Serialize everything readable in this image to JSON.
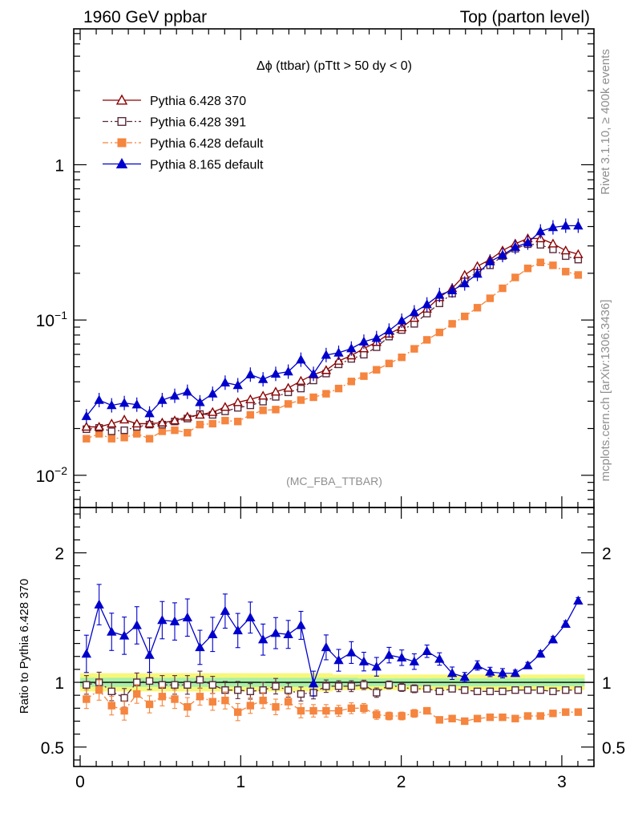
{
  "header": {
    "left": "1960 GeV ppbar",
    "right": "Top (parton level)"
  },
  "side_labels": {
    "rivet": "Rivet 3.1.10, ≥ 400k events",
    "mcplots": "mcplots.cern.ch [arXiv:1306.3436]"
  },
  "chart_data": [
    {
      "type": "line",
      "panel": "main",
      "title": "Δϕ (ttbar) (pTtt > 50 dy < 0)",
      "watermark": "(MC_FBA_TTBAR)",
      "xlabel": "",
      "ylabel": "",
      "yscale": "log",
      "xlim": [
        -0.04,
        3.2
      ],
      "ylim": [
        0.0062,
        7.5
      ],
      "grid": false,
      "legend_position": "top-left",
      "x_ticks": [
        {
          "value": 0,
          "label": "0"
        },
        {
          "value": 1,
          "label": "1"
        },
        {
          "value": 2,
          "label": "2"
        },
        {
          "value": 3,
          "label": "3"
        }
      ],
      "y_ticks": [
        {
          "value": 0.01,
          "base": "10",
          "exp": "−2"
        },
        {
          "value": 0.1,
          "base": "10",
          "exp": "−1"
        },
        {
          "value": 1,
          "base": "1",
          "exp": ""
        }
      ],
      "x": [
        0.039,
        0.118,
        0.196,
        0.275,
        0.353,
        0.432,
        0.511,
        0.589,
        0.668,
        0.746,
        0.825,
        0.903,
        0.982,
        1.06,
        1.139,
        1.218,
        1.296,
        1.375,
        1.453,
        1.532,
        1.61,
        1.689,
        1.767,
        1.846,
        1.924,
        2.003,
        2.081,
        2.16,
        2.238,
        2.317,
        2.395,
        2.474,
        2.553,
        2.631,
        2.71,
        2.788,
        2.867,
        2.945,
        3.024,
        3.102
      ],
      "series": [
        {
          "name": "Pythia 6.428 370",
          "color": "#8b0000",
          "marker": "open-triangle",
          "dash": "solid",
          "values": [
            0.0205,
            0.0205,
            0.0215,
            0.0228,
            0.0215,
            0.0215,
            0.0218,
            0.0225,
            0.0238,
            0.0245,
            0.0255,
            0.0275,
            0.0295,
            0.0308,
            0.0325,
            0.0345,
            0.0365,
            0.0405,
            0.0445,
            0.0475,
            0.0545,
            0.059,
            0.0655,
            0.072,
            0.0815,
            0.0895,
            0.103,
            0.118,
            0.14,
            0.16,
            0.195,
            0.222,
            0.245,
            0.28,
            0.31,
            0.335,
            0.335,
            0.31,
            0.28,
            0.265
          ]
        },
        {
          "name": "Pythia 6.428 391",
          "color": "#5a2a3a",
          "marker": "open-square",
          "dash": "dashdot",
          "values": [
            0.0198,
            0.0202,
            0.0192,
            0.0195,
            0.0205,
            0.0212,
            0.0212,
            0.0222,
            0.0232,
            0.0248,
            0.0245,
            0.0258,
            0.0272,
            0.0282,
            0.0298,
            0.032,
            0.0342,
            0.0362,
            0.0408,
            0.0452,
            0.0518,
            0.0562,
            0.0598,
            0.0668,
            0.0782,
            0.0862,
            0.0945,
            0.11,
            0.128,
            0.148,
            0.182,
            0.202,
            0.225,
            0.258,
            0.288,
            0.308,
            0.305,
            0.285,
            0.258,
            0.245
          ]
        },
        {
          "name": "Pythia 6.428 default",
          "color": "#f5853f",
          "marker": "filled-square",
          "dash": "dashdot",
          "values": [
            0.0172,
            0.0185,
            0.0172,
            0.0175,
            0.0185,
            0.0172,
            0.0192,
            0.0195,
            0.0188,
            0.0212,
            0.0215,
            0.0225,
            0.0222,
            0.0245,
            0.0262,
            0.0265,
            0.0288,
            0.0305,
            0.0318,
            0.0335,
            0.0362,
            0.0402,
            0.0435,
            0.0478,
            0.0525,
            0.0575,
            0.0652,
            0.0745,
            0.0832,
            0.0945,
            0.1055,
            0.12,
            0.138,
            0.16,
            0.188,
            0.215,
            0.235,
            0.225,
            0.205,
            0.195
          ]
        },
        {
          "name": "Pythia 8.165 default",
          "color": "#0000cd",
          "marker": "filled-triangle",
          "dash": "solid",
          "values": [
            0.024,
            0.0305,
            0.0282,
            0.0292,
            0.0285,
            0.025,
            0.0305,
            0.0325,
            0.0345,
            0.0295,
            0.0335,
            0.0395,
            0.038,
            0.0445,
            0.0415,
            0.045,
            0.0465,
            0.0555,
            0.045,
            0.0595,
            0.0615,
            0.0655,
            0.0725,
            0.0765,
            0.0855,
            0.099,
            0.112,
            0.126,
            0.145,
            0.155,
            0.172,
            0.198,
            0.238,
            0.262,
            0.295,
            0.315,
            0.372,
            0.395,
            0.405,
            0.405
          ]
        }
      ]
    },
    {
      "type": "line",
      "panel": "ratio",
      "xlabel": "",
      "ylabel": "Ratio to Pythia 6.428 370",
      "xlim": [
        -0.04,
        3.2
      ],
      "ylim": [
        0.35,
        2.35
      ],
      "reference_line": 1,
      "band_label": "",
      "grid": false,
      "x_ticks": [
        {
          "value": 0,
          "label": "0"
        },
        {
          "value": 1,
          "label": "1"
        },
        {
          "value": 2,
          "label": "2"
        },
        {
          "value": 3,
          "label": "3"
        }
      ],
      "y_ticks": [
        {
          "value": 0.5,
          "label": "0.5"
        },
        {
          "value": 1,
          "label": "1"
        },
        {
          "value": 2,
          "label": "2"
        }
      ],
      "band_inner_color": "#a8f0a8",
      "band_outer_color": "#f7f77a",
      "band_inner": [
        0.035,
        0.035,
        0.035,
        0.035,
        0.035,
        0.035,
        0.035,
        0.035,
        0.035,
        0.035,
        0.035,
        0.035,
        0.035,
        0.035,
        0.035,
        0.035,
        0.035,
        0.035,
        0.035,
        0.035,
        0.035,
        0.035,
        0.03,
        0.03,
        0.03,
        0.03,
        0.03,
        0.03,
        0.03,
        0.03,
        0.03,
        0.03,
        0.03,
        0.03,
        0.03,
        0.03,
        0.03,
        0.03,
        0.03,
        0.03
      ],
      "band_outer": [
        0.07,
        0.07,
        0.07,
        0.07,
        0.07,
        0.07,
        0.07,
        0.07,
        0.07,
        0.07,
        0.07,
        0.07,
        0.07,
        0.07,
        0.07,
        0.07,
        0.07,
        0.07,
        0.07,
        0.07,
        0.06,
        0.06,
        0.06,
        0.06,
        0.06,
        0.06,
        0.06,
        0.06,
        0.06,
        0.06,
        0.06,
        0.06,
        0.06,
        0.06,
        0.06,
        0.06,
        0.06,
        0.06,
        0.06,
        0.06
      ],
      "series": [
        {
          "name": "Pythia 6.428 391",
          "values": [
            0.98,
            1.0,
            0.93,
            0.88,
            1.0,
            1.01,
            0.98,
            0.98,
            0.98,
            1.02,
            0.98,
            0.94,
            0.94,
            0.93,
            0.94,
            0.97,
            0.94,
            0.91,
            0.92,
            0.97,
            0.97,
            0.97,
            0.98,
            0.92,
            0.98,
            0.96,
            0.95,
            0.95,
            0.93,
            0.95,
            0.94,
            0.93,
            0.93,
            0.93,
            0.94,
            0.94,
            0.94,
            0.93,
            0.94,
            0.94
          ]
        },
        {
          "name": "Pythia 6.428 default",
          "values": [
            0.87,
            0.94,
            0.82,
            0.78,
            0.91,
            0.83,
            0.89,
            0.87,
            0.81,
            0.89,
            0.85,
            0.86,
            0.77,
            0.82,
            0.86,
            0.81,
            0.85,
            0.78,
            0.78,
            0.78,
            0.78,
            0.8,
            0.8,
            0.75,
            0.74,
            0.74,
            0.76,
            0.78,
            0.71,
            0.72,
            0.7,
            0.72,
            0.73,
            0.73,
            0.72,
            0.74,
            0.74,
            0.76,
            0.77,
            0.77
          ]
        },
        {
          "name": "Pythia 8.165 default",
          "values": [
            1.22,
            1.6,
            1.39,
            1.36,
            1.44,
            1.21,
            1.48,
            1.47,
            1.5,
            1.27,
            1.37,
            1.55,
            1.4,
            1.5,
            1.33,
            1.38,
            1.37,
            1.44,
            0.99,
            1.27,
            1.17,
            1.23,
            1.16,
            1.12,
            1.21,
            1.19,
            1.16,
            1.24,
            1.18,
            1.07,
            1.04,
            1.13,
            1.08,
            1.07,
            1.07,
            1.13,
            1.22,
            1.33,
            1.45,
            1.63
          ]
        }
      ]
    }
  ]
}
